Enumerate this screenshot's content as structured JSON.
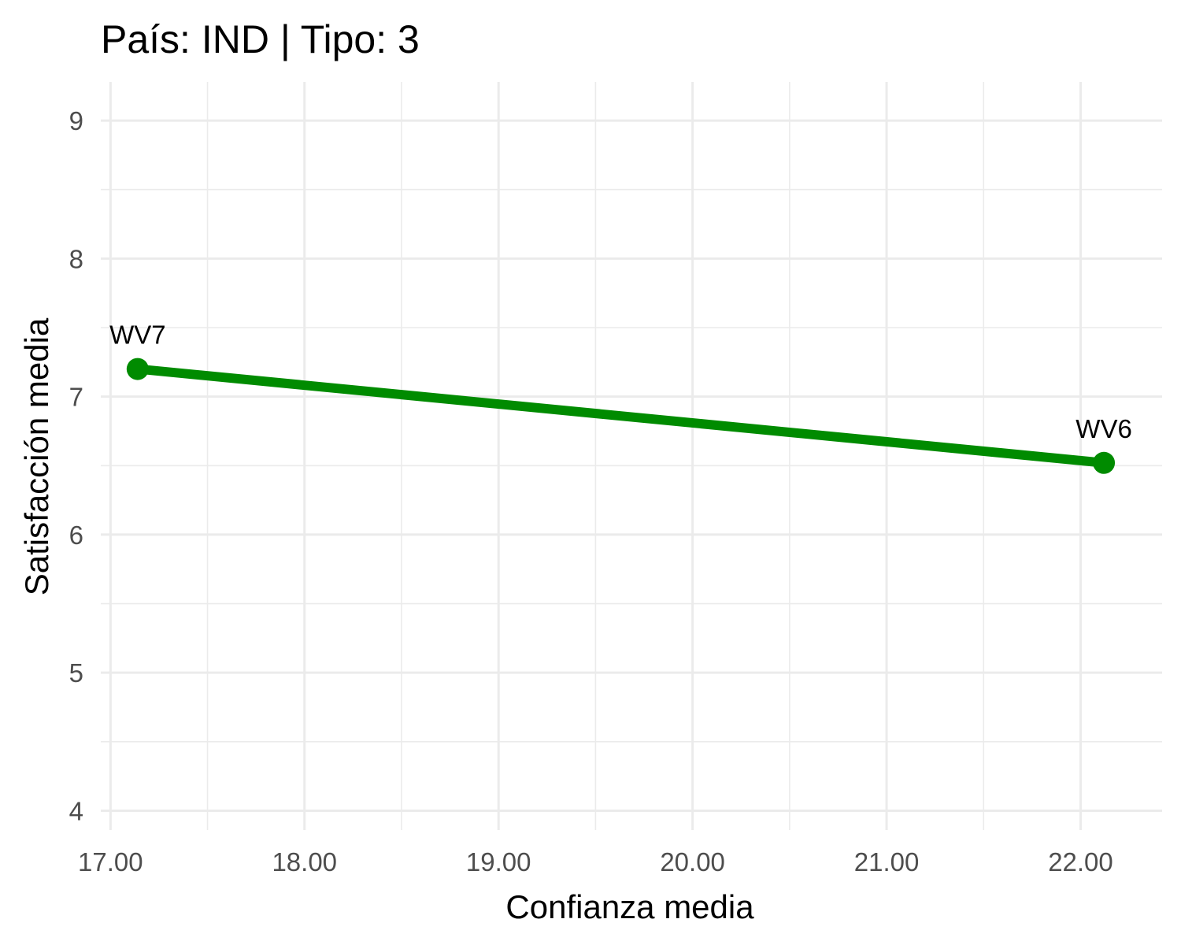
{
  "chart_data": {
    "type": "line",
    "title": "País: IND | Tipo: 3",
    "xlabel": "Confianza media",
    "ylabel": "Satisfacción media",
    "xlim": [
      16.95,
      22.42
    ],
    "ylim": [
      3.86,
      9.28
    ],
    "x_ticks": [
      17,
      18,
      19,
      20,
      21,
      22
    ],
    "x_tick_labels": [
      "17.00",
      "18.00",
      "19.00",
      "20.00",
      "21.00",
      "22.00"
    ],
    "y_ticks": [
      4,
      5,
      6,
      7,
      8,
      9
    ],
    "y_tick_labels": [
      "4",
      "5",
      "6",
      "7",
      "8",
      "9"
    ],
    "grid": true,
    "series": [
      {
        "color": "#008b00",
        "points": [
          {
            "label": "WV7",
            "x": 17.14,
            "y": 7.2
          },
          {
            "label": "WV6",
            "x": 22.12,
            "y": 6.52
          }
        ]
      }
    ]
  }
}
